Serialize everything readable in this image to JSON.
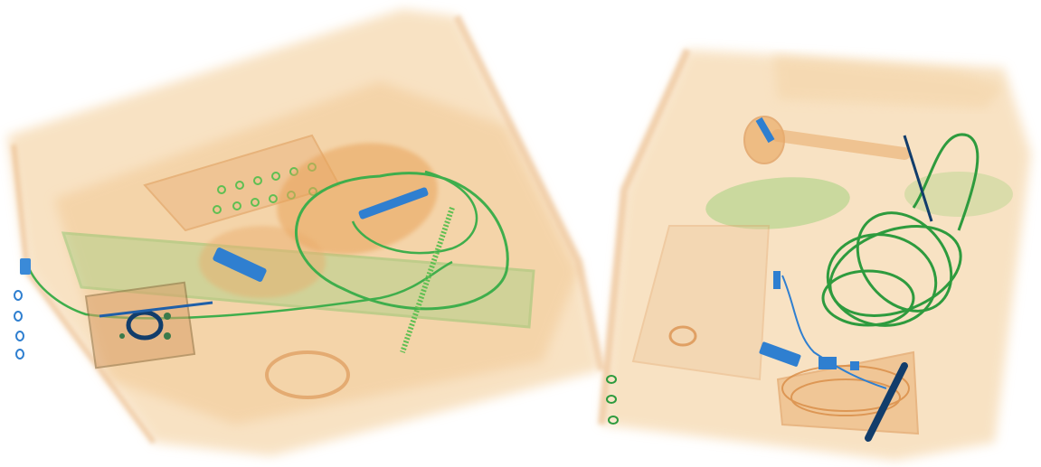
{
  "scene": {
    "kind": "xray-baggage-scan",
    "objects": [
      {
        "name": "left-bag",
        "contents": [
          "tray",
          "cable",
          "electronics",
          "connector",
          "ring"
        ]
      },
      {
        "name": "right-bag",
        "contents": [
          "coiled-cable",
          "electronics",
          "handle",
          "pouch"
        ]
      }
    ],
    "palette": {
      "background": "#ffffff",
      "organic_light": "#f6d9b0",
      "organic": "#eab27a",
      "organic_dark": "#d98c45",
      "mixed": "#5fbf52",
      "mixed_dark": "#2e9b3e",
      "inorganic": "#2f7fd0",
      "dense": "#123d6b"
    }
  }
}
